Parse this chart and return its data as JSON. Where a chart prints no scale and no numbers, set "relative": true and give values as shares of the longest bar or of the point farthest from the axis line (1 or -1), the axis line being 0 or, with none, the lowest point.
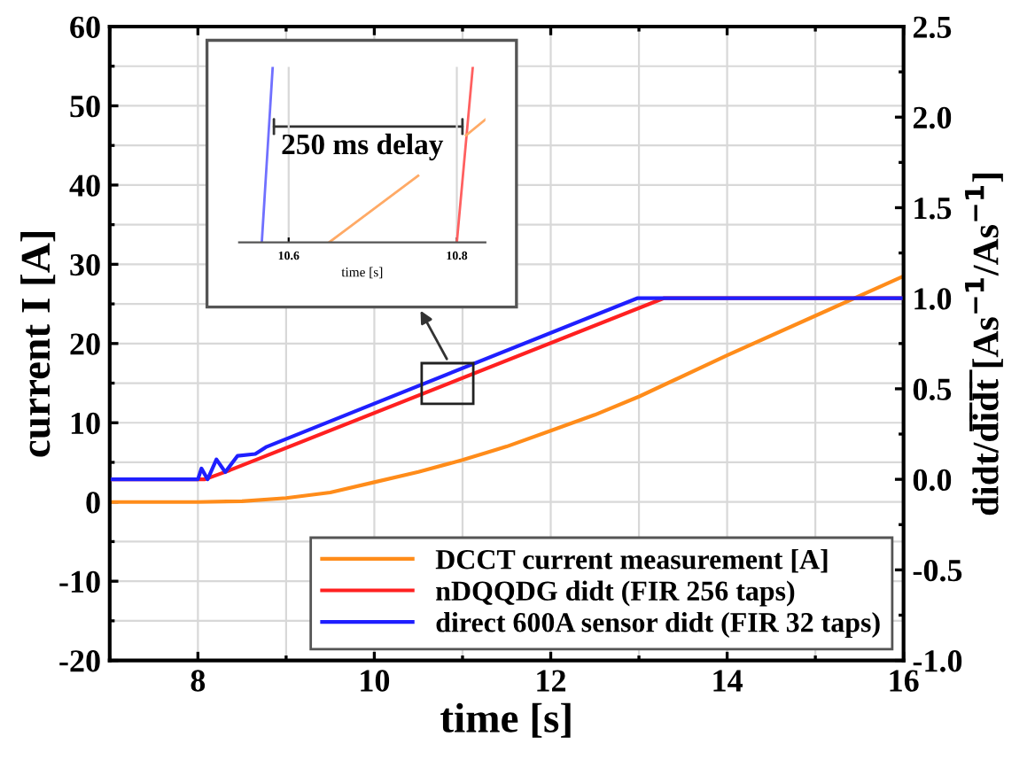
{
  "chart_data": [
    {
      "type": "line",
      "xlabel": "time [s]",
      "ylabel": "current I [A]",
      "y2label": "didt/d̅i̅d̅t̅ [As$^{−1}$/As$^{−1}$]",
      "xlim": [
        7,
        16
      ],
      "xticks": [
        8,
        10,
        12,
        14,
        16
      ],
      "ylim": [
        -20,
        60
      ],
      "yticks": [
        -20,
        -10,
        0,
        10,
        20,
        30,
        40,
        50,
        60
      ],
      "y2lim": [
        -1.0,
        2.5
      ],
      "y2ticks": [
        {
          "value": -1.0,
          "label": "-1.0"
        },
        {
          "value": -0.5,
          "label": "-0.5"
        },
        {
          "value": 0.0,
          "label": "0.0"
        },
        {
          "value": 0.5,
          "label": "0.5"
        },
        {
          "value": 1.0,
          "label": "1.0"
        },
        {
          "value": 1.5,
          "label": "1.5"
        },
        {
          "value": 2.0,
          "label": "2.0"
        },
        {
          "value": 2.5,
          "label": "2.5"
        }
      ],
      "grid": true,
      "legend": "bottom right",
      "series": [
        {
          "name": "DCCT current measurement [A]",
          "color": "#ff8c1a",
          "x": [
            7,
            8,
            8.5,
            9,
            9.5,
            10,
            10.5,
            11,
            11.5,
            12,
            12.5,
            13,
            14,
            15,
            16
          ],
          "values": [
            0,
            0,
            0.1,
            0.5,
            1.2,
            2.5,
            3.8,
            5.3,
            7.0,
            9.0,
            11.0,
            13.3,
            18.5,
            23.5,
            28.5
          ]
        },
        {
          "name": "nDQQDG didt (FIR 256 taps)",
          "color": "#ff2020",
          "axis": "y2",
          "x": [
            7,
            8.05,
            8.08,
            8.36,
            13.28,
            16
          ],
          "values": [
            0,
            0,
            0.0,
            0.05,
            1.0,
            1.0
          ]
        },
        {
          "name": "direct 600A sensor didt (FIR 32 taps)",
          "color": "#1f1fff",
          "axis": "y2",
          "x": [
            7,
            8.0,
            8.04,
            8.11,
            8.21,
            8.31,
            8.45,
            8.65,
            8.78,
            12.98,
            16
          ],
          "values": [
            0,
            0,
            0.06,
            0.0,
            0.11,
            0.04,
            0.13,
            0.14,
            0.18,
            1.0,
            1.0
          ]
        }
      ]
    },
    {
      "type": "line",
      "relative": true,
      "xlabel": "time [s]",
      "xlim": [
        10.541,
        10.834
      ],
      "xticks": [
        10.6,
        10.8
      ],
      "grid": "x",
      "tick_labels": "x",
      "annotations": [
        "250 ms delay"
      ],
      "series": [
        {
          "color": "#7070ff",
          "x": [
            10.568,
            10.581
          ],
          "values": [
            0,
            1
          ]
        },
        {
          "color": "#ff6060",
          "x": [
            10.8,
            10.819
          ],
          "values": [
            0,
            1
          ]
        },
        {
          "color": "#ffaa66",
          "x": [
            10.648,
            10.754,
            10.78,
            10.811,
            10.834
          ],
          "values": [
            0,
            0.38,
            null,
            0.61,
            0.7
          ]
        }
      ]
    }
  ]
}
